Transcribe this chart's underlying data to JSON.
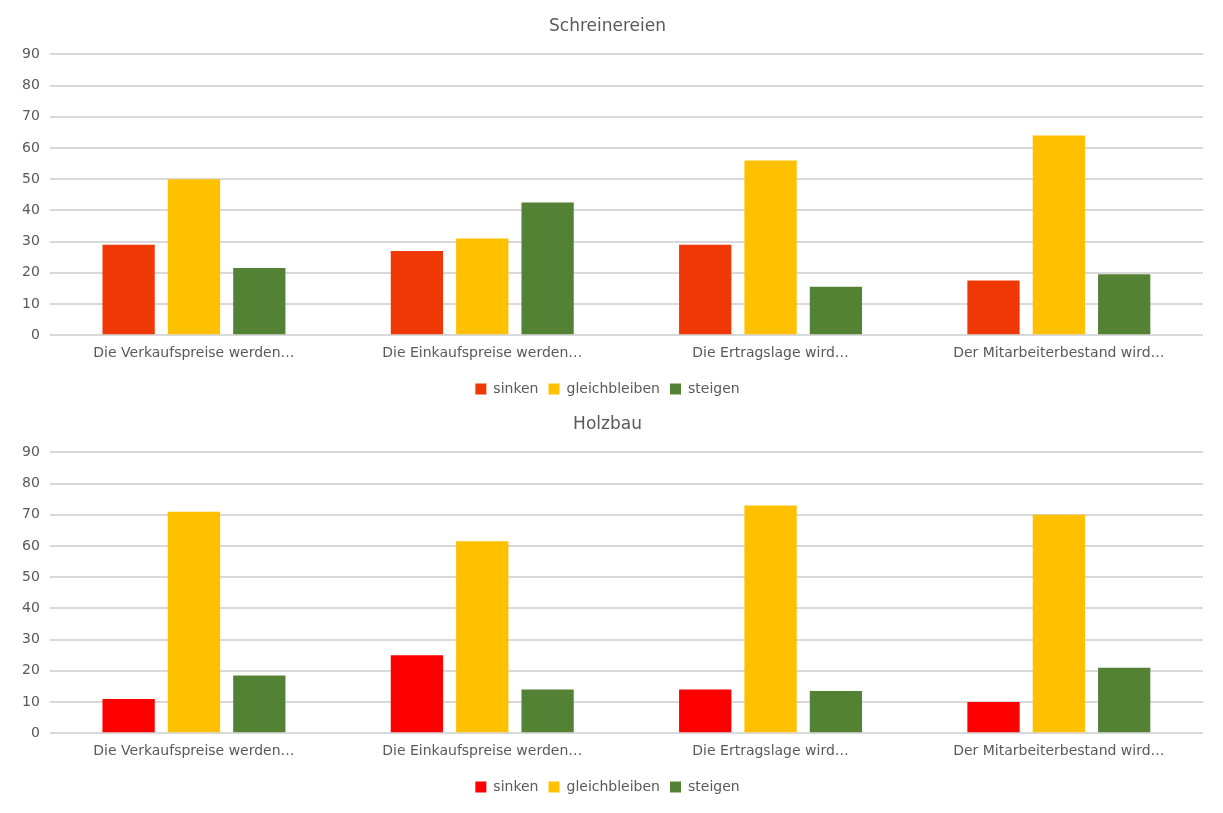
{
  "chart_data": [
    {
      "type": "bar",
      "title": "Schreinereien",
      "categories": [
        "Die Verkaufspreise werden…",
        "Die Einkaufspreise werden…",
        "Die Ertragslage wird…",
        "Der Mitarbeiterbestand wird…"
      ],
      "series": [
        {
          "name": "sinken",
          "color": "#ef3804",
          "values": [
            29,
            27,
            29,
            17.5
          ]
        },
        {
          "name": "gleichbleiben",
          "color": "#ffc000",
          "values": [
            50,
            31,
            56,
            64
          ]
        },
        {
          "name": "steigen",
          "color": "#548235",
          "values": [
            21.5,
            42.5,
            15.5,
            19.5
          ]
        }
      ],
      "ylim": [
        0,
        90
      ],
      "yticks": [
        0,
        10,
        20,
        30,
        40,
        50,
        60,
        70,
        80,
        90
      ],
      "grid": "y",
      "legend": "bottom"
    },
    {
      "type": "bar",
      "title": "Holzbau",
      "categories": [
        "Die Verkaufspreise werden…",
        "Die Einkaufspreise werden…",
        "Die Ertragslage wird…",
        "Der Mitarbeiterbestand wird…"
      ],
      "series": [
        {
          "name": "sinken",
          "color": "#ff0000",
          "values": [
            11,
            25,
            14,
            10
          ]
        },
        {
          "name": "gleichbleiben",
          "color": "#ffc000",
          "values": [
            71,
            61.5,
            73,
            70
          ]
        },
        {
          "name": "steigen",
          "color": "#548235",
          "values": [
            18.5,
            14,
            13.5,
            21
          ]
        }
      ],
      "ylim": [
        0,
        90
      ],
      "yticks": [
        0,
        10,
        20,
        30,
        40,
        50,
        60,
        70,
        80,
        90
      ],
      "grid": "y",
      "legend": "bottom"
    }
  ]
}
